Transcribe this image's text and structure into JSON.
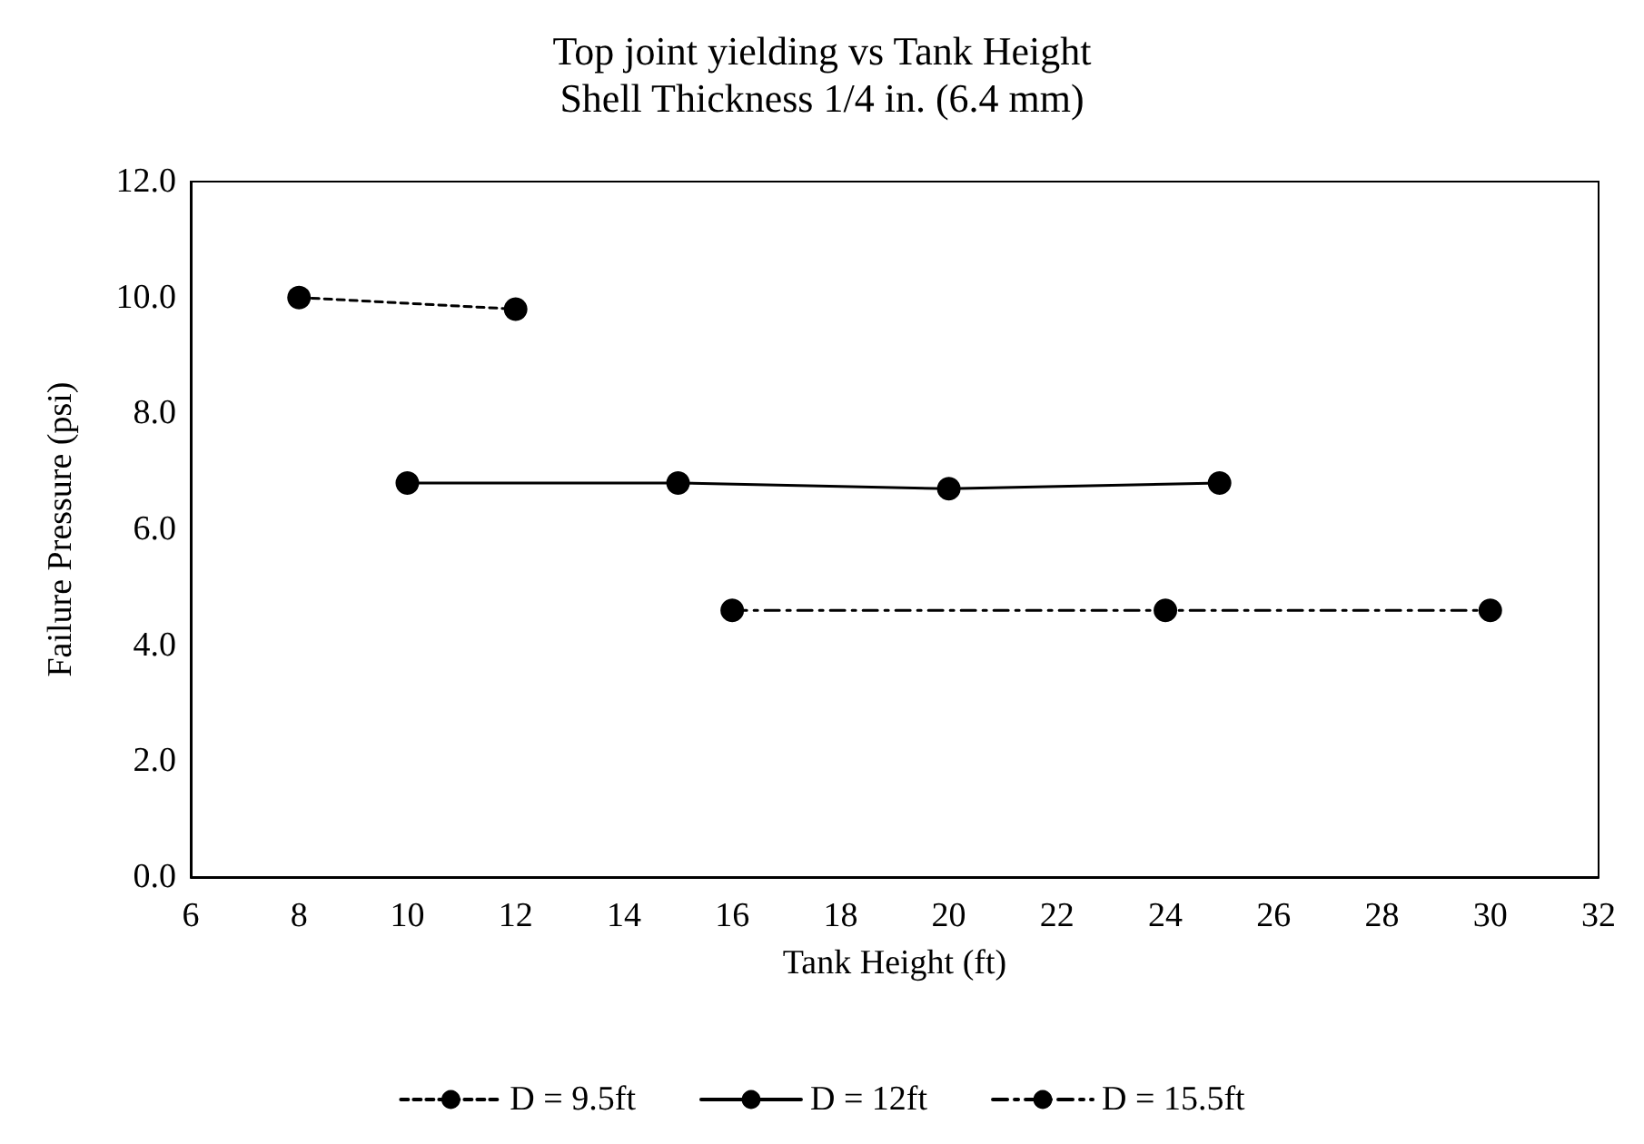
{
  "chart_data": {
    "type": "line",
    "title": "Top joint yielding vs Tank Height",
    "subtitle": "Shell Thickness 1/4 in. (6.4 mm)",
    "xlabel": "Tank Height (ft)",
    "ylabel": "Failure Pressure (psi)",
    "xlim": [
      6,
      32
    ],
    "xticks": [
      6,
      8,
      10,
      12,
      14,
      16,
      18,
      20,
      22,
      24,
      26,
      28,
      30,
      32
    ],
    "ylim": [
      0,
      12
    ],
    "yticks": [
      {
        "value": 0,
        "label": "0.0"
      },
      {
        "value": 2,
        "label": "2.0"
      },
      {
        "value": 4,
        "label": "4.0"
      },
      {
        "value": 6,
        "label": "6.0"
      },
      {
        "value": 8,
        "label": "8.0"
      },
      {
        "value": 10,
        "label": "10.0"
      },
      {
        "value": 12,
        "label": "12.0"
      }
    ],
    "grid": false,
    "legend": "bottom",
    "marker": "circle",
    "series": [
      {
        "name": "D = 9.5ft",
        "color": "#000000",
        "line_style": "dashed",
        "x": [
          8,
          12
        ],
        "values": [
          10.0,
          9.8
        ]
      },
      {
        "name": "D = 12ft",
        "color": "#000000",
        "line_style": "solid",
        "x": [
          10,
          15,
          20,
          25
        ],
        "values": [
          6.8,
          6.8,
          6.7,
          6.8
        ]
      },
      {
        "name": "D = 15.5ft",
        "color": "#000000",
        "line_style": "dashdot",
        "x": [
          16,
          24,
          30
        ],
        "values": [
          4.6,
          4.6,
          4.6
        ]
      }
    ]
  }
}
